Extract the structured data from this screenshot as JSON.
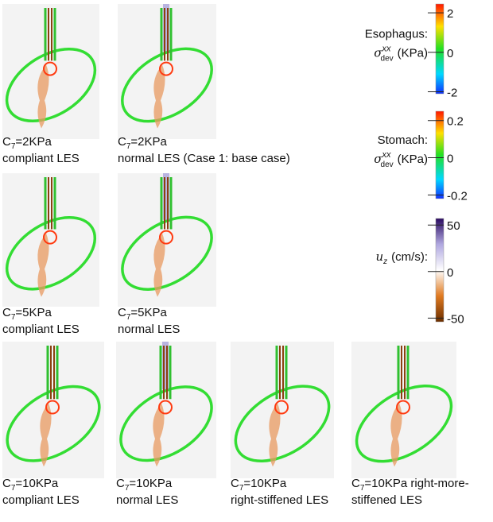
{
  "panels": [
    {
      "sym": "C",
      "sub": "7",
      "rest": "=2KPa",
      "line2": "compliant LES"
    },
    {
      "sym": "C",
      "sub": "7",
      "rest": "=2KPa",
      "line2": "normal LES (Case 1: base case)"
    },
    {
      "sym": "C",
      "sub": "7",
      "rest": "=5KPa",
      "line2": "compliant LES"
    },
    {
      "sym": "C",
      "sub": "7",
      "rest": "=5KPa",
      "line2": "normal LES"
    },
    {
      "sym": "C",
      "sub": "7",
      "rest": "=10KPa",
      "line2": "compliant LES"
    },
    {
      "sym": "C",
      "sub": "7",
      "rest": "=10KPa",
      "line2": "normal LES"
    },
    {
      "sym": "C",
      "sub": "7",
      "rest": "=10KPa",
      "line2": "right-stiffened LES"
    },
    {
      "sym": "C",
      "sub": "7",
      "rest": "=10KPa right-more-",
      "line2": "stiffened LES"
    }
  ],
  "colorbars": [
    {
      "title": "Esophagus:",
      "sym": "σ",
      "sup": "xx",
      "sub": "dev",
      "unit": "(KPa)",
      "lim": [
        -2.1,
        2.45
      ],
      "ticks": [
        2,
        0,
        -2
      ]
    },
    {
      "title": "Stomach:",
      "sym": "σ",
      "sup": "xx",
      "sub": "dev",
      "unit": "(KPa)",
      "lim": [
        -0.22,
        0.25
      ],
      "ticks": [
        0.2,
        0,
        -0.2
      ]
    },
    {
      "sym": "u",
      "sub": "z",
      "unit": "(cm/s):",
      "lim": [
        -54,
        57
      ],
      "ticks": [
        50,
        0,
        -50
      ]
    }
  ]
}
